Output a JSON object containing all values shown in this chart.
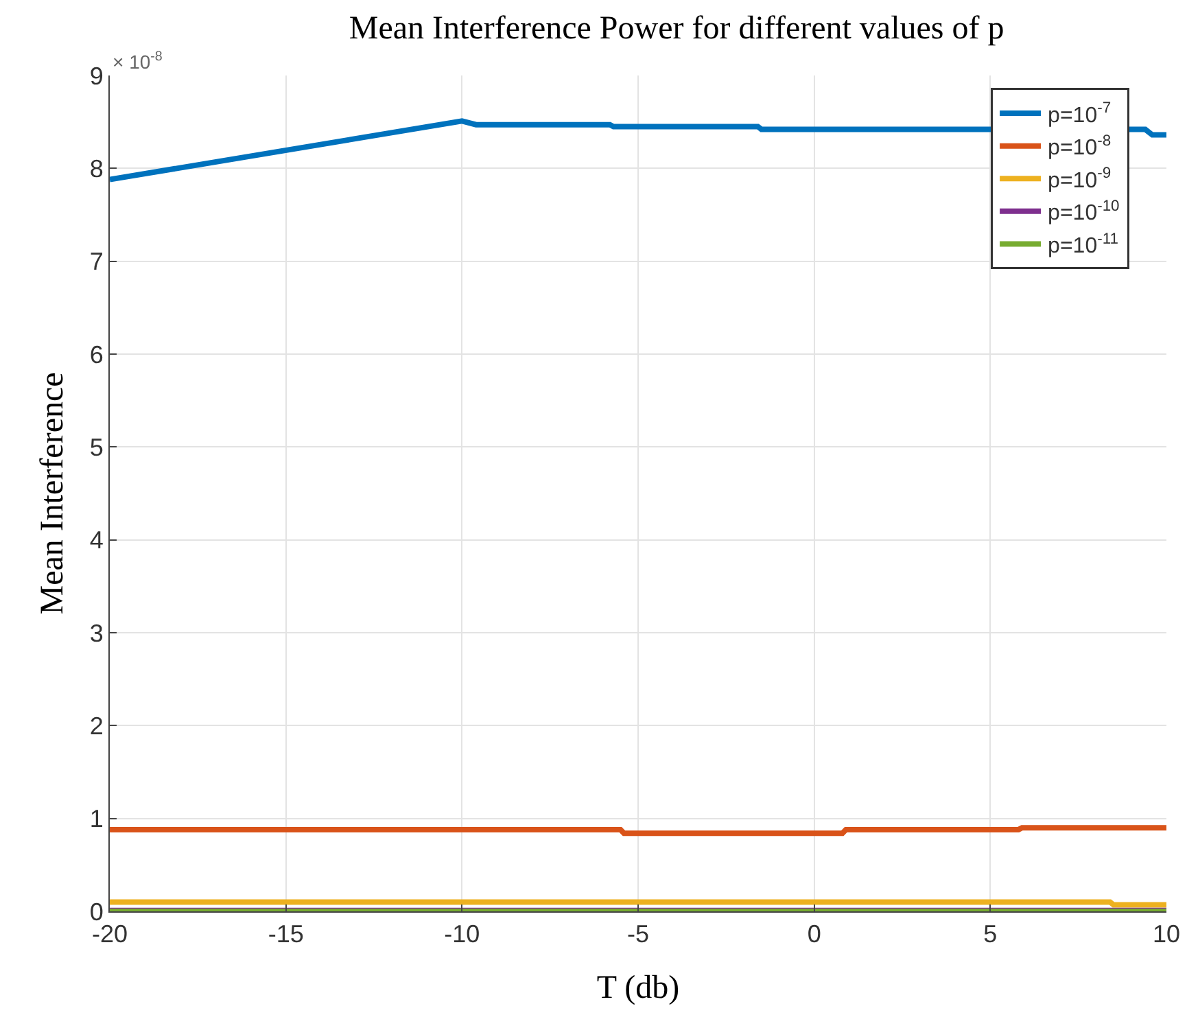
{
  "chart_data": {
    "type": "line",
    "title": "Mean Interference Power for different values of p",
    "xlabel": "T (db)",
    "ylabel": "Mean Interference",
    "annotations": [
      "× 10$^{-8}$"
    ],
    "series": [
      {
        "name": "p=10$^{-7}$",
        "color": "#0072bd",
        "x": [
          -20,
          -10,
          -9.6,
          -5.8,
          -5.7,
          -1.6,
          -1.5,
          9.4,
          9.6,
          10
        ],
        "values": [
          7.88,
          8.51,
          8.47,
          8.47,
          8.45,
          8.45,
          8.42,
          8.42,
          8.36,
          8.36
        ]
      },
      {
        "name": "p=10$^{-8}$",
        "color": "#d95319",
        "x": [
          -20,
          -5.5,
          -5.4,
          0.8,
          0.9,
          5.8,
          5.9,
          10
        ],
        "values": [
          0.88,
          0.88,
          0.84,
          0.84,
          0.88,
          0.88,
          0.9,
          0.9
        ]
      },
      {
        "name": "p=10$^{-9}$",
        "color": "#edb120",
        "x": [
          -20,
          8.4,
          8.5,
          10
        ],
        "values": [
          0.1,
          0.1,
          0.07,
          0.07
        ]
      },
      {
        "name": "p=10$^{-10}$",
        "color": "#7e2f8e",
        "x": [
          -20,
          10
        ],
        "values": [
          0.01,
          0.01
        ]
      },
      {
        "name": "p=10$^{-11}$",
        "color": "#77ac30",
        "x": [
          -20,
          10
        ],
        "values": [
          0,
          0
        ]
      }
    ],
    "xlim": [
      -20,
      10
    ],
    "xticks": [
      -20,
      -15,
      -10,
      -5,
      0,
      5,
      10
    ],
    "ylim": [
      0,
      9
    ],
    "yticks": [
      0,
      1,
      2,
      3,
      4,
      5,
      6,
      7,
      8,
      9
    ],
    "grid": true,
    "legend": "top right"
  }
}
